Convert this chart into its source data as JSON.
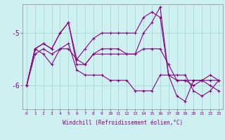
{
  "xlabel": "Windchill (Refroidissement éolien,°C)",
  "bg_color": "#cff0f0",
  "grid_color": "#aadddd",
  "line_color": "#880088",
  "x_ticks": [
    0,
    1,
    2,
    3,
    4,
    5,
    6,
    7,
    8,
    9,
    10,
    11,
    12,
    13,
    14,
    15,
    16,
    17,
    18,
    19,
    20,
    21,
    22,
    23
  ],
  "ylim": [
    -6.45,
    -4.45
  ],
  "yticks": [
    -6,
    -5
  ],
  "ytick_labels": [
    "-6",
    "-5"
  ],
  "series": [
    [
      -6.0,
      -5.3,
      -5.2,
      -5.3,
      -5.0,
      -4.8,
      -5.5,
      -5.3,
      -5.1,
      -5.0,
      -5.0,
      -5.0,
      -5.0,
      -5.0,
      -4.7,
      -4.6,
      -4.7,
      -5.8,
      -5.9,
      -5.9,
      -6.0,
      -5.9,
      -5.8,
      -5.9
    ],
    [
      -6.0,
      -5.4,
      -5.3,
      -5.4,
      -5.3,
      -5.3,
      -5.5,
      -5.6,
      -5.4,
      -5.3,
      -5.3,
      -5.3,
      -5.4,
      -5.4,
      -5.3,
      -5.3,
      -5.3,
      -5.6,
      -5.9,
      -5.9,
      -5.9,
      -5.9,
      -5.9,
      -5.9
    ],
    [
      -6.0,
      -5.3,
      -5.2,
      -5.3,
      -5.0,
      -4.8,
      -5.6,
      -5.6,
      -5.4,
      -5.4,
      -5.4,
      -5.4,
      -5.4,
      -5.4,
      -5.0,
      -4.8,
      -4.5,
      -5.8,
      -5.8,
      -5.8,
      -6.1,
      -6.2,
      -6.1,
      -5.9
    ],
    [
      -6.0,
      -5.3,
      -5.4,
      -5.6,
      -5.3,
      -5.2,
      -5.7,
      -5.8,
      -5.8,
      -5.8,
      -5.9,
      -5.9,
      -5.9,
      -6.1,
      -6.1,
      -6.1,
      -5.8,
      -5.8,
      -6.2,
      -6.3,
      -5.9,
      -5.9,
      -6.0,
      -6.1
    ]
  ]
}
